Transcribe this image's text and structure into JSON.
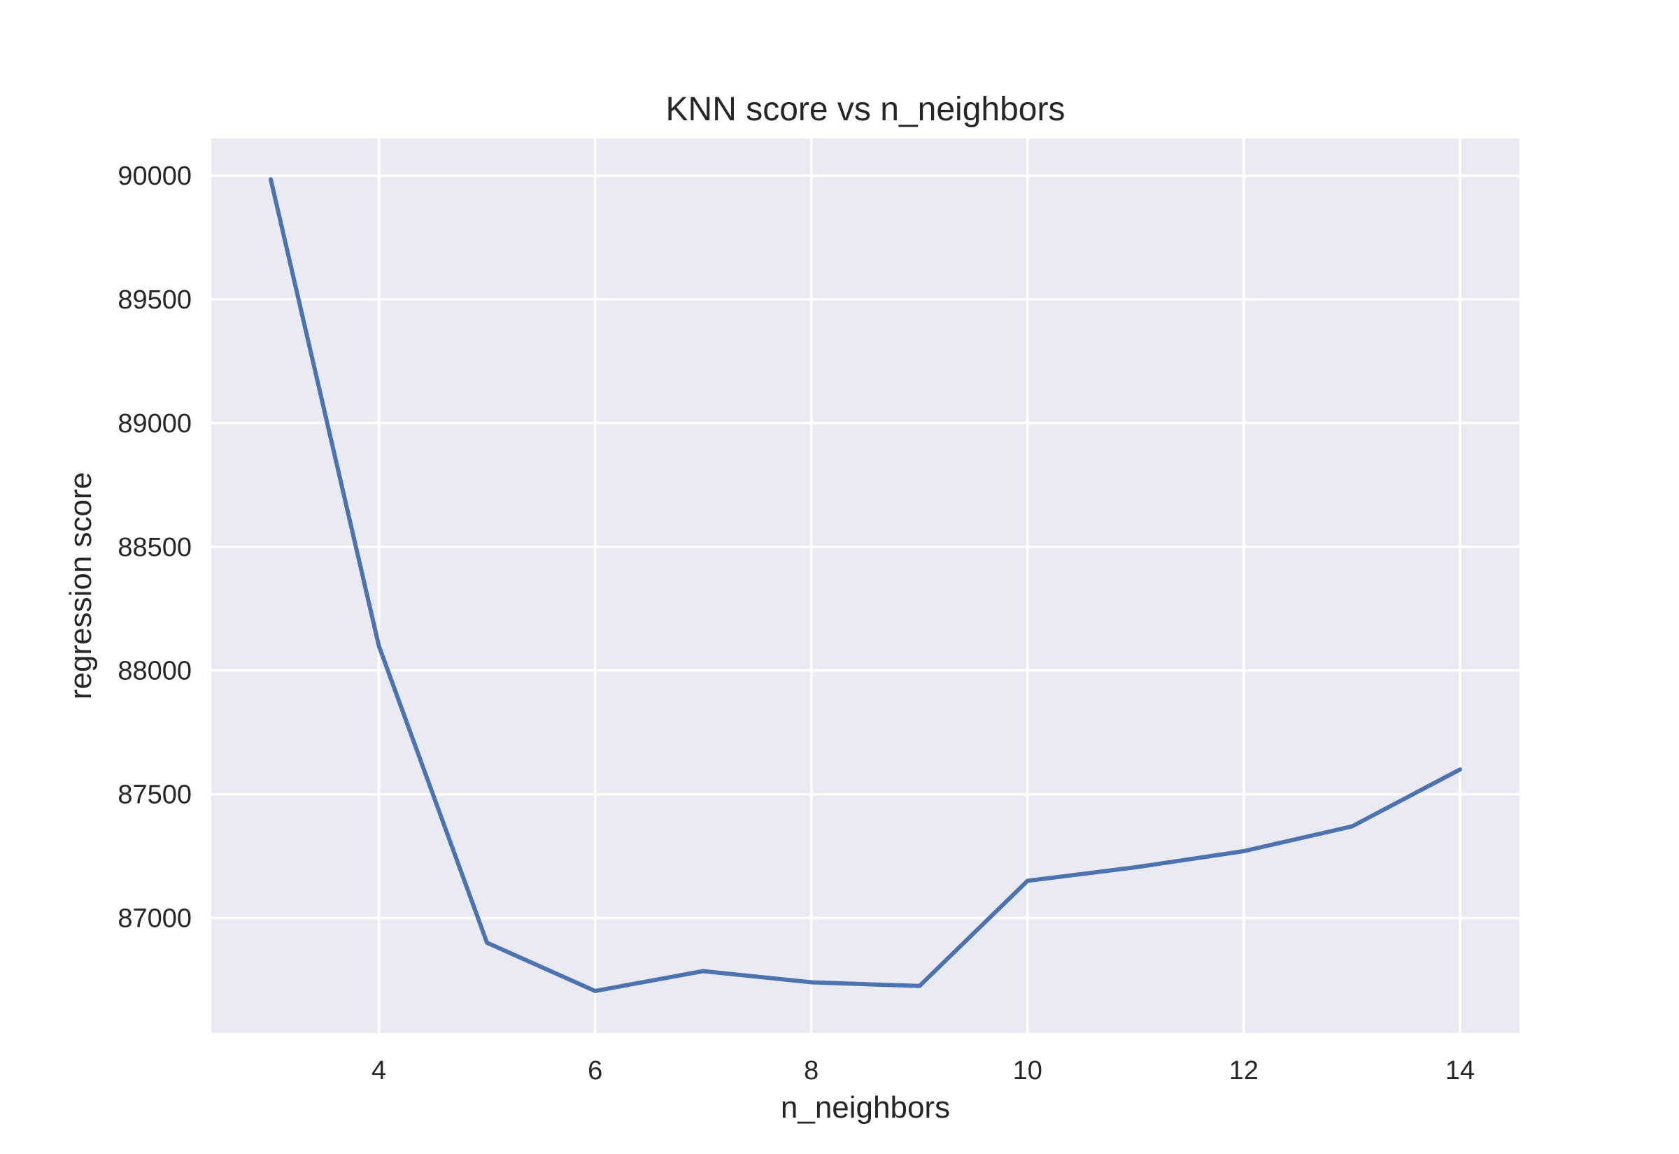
{
  "colors": {
    "plot_background": "#eaeaf2",
    "grid": "#ffffff",
    "line": "#4c72b0",
    "text": "#262626"
  },
  "chart_data": {
    "type": "line",
    "title": "KNN score vs n_neighbors",
    "xlabel": "n_neighbors",
    "ylabel": "regression score",
    "x": [
      3,
      4,
      5,
      6,
      7,
      8,
      9,
      10,
      11,
      12,
      13,
      14
    ],
    "series": [
      {
        "values": [
          89985,
          88100,
          86900,
          86705,
          86785,
          86740,
          86725,
          87150,
          87205,
          87270,
          87370,
          87600
        ]
      }
    ],
    "xlim": [
      2.45,
      14.55
    ],
    "ylim": [
      86535,
      90150
    ],
    "xticks": [
      4,
      6,
      8,
      10,
      12,
      14
    ],
    "yticks": [
      87000,
      87500,
      88000,
      88500,
      89000,
      89500,
      90000
    ],
    "grid": true,
    "legend": "none"
  }
}
